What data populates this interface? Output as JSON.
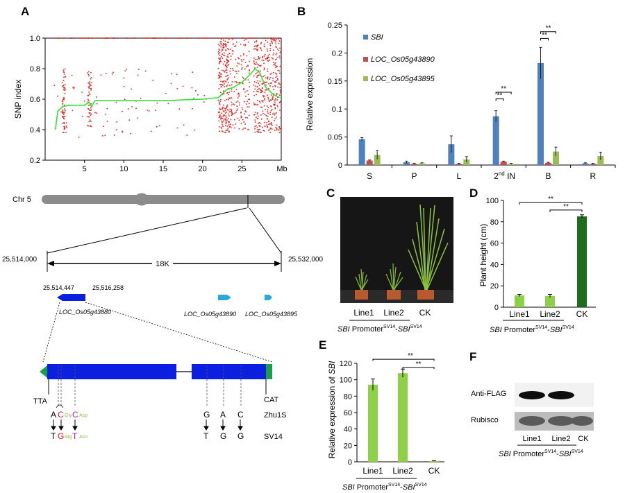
{
  "panels": {
    "A": "A",
    "B": "B",
    "C": "C",
    "D": "D",
    "E": "E",
    "F": "F"
  },
  "colors": {
    "snp_points": "#e8201c",
    "snp_line": "#33e333",
    "sbi_bar": "#4f81bd",
    "loc890_bar": "#c0504d",
    "loc895_bar": "#9bbb59",
    "gene_blue": "#0a1fe0",
    "arrow_cyan": "#28a8e0",
    "end_green": "#179f45",
    "height_green": "#8ed048",
    "ck_dark_green": "#1e6d1e"
  },
  "panel_a": {
    "ylabel": "SNP index",
    "y_ticks": [
      "0.2",
      "0.4",
      "0.6",
      "0.8",
      "1.0"
    ],
    "x_ticks": [
      "5",
      "10",
      "15",
      "20",
      "25"
    ],
    "x_unit": "Mb",
    "chromosome": "Chr 5",
    "region_left": "25,514,000",
    "region_right": "25,532,000",
    "region_size": "18K",
    "gene_start": "25,514,447",
    "gene_end": "25,516,258",
    "gene_main": "LOC_Os05g43880",
    "gene_2": "LOC_Os05g43890",
    "gene_3": "LOC_Os05g43895",
    "left_codon": "TTA",
    "right_codon": "CAT",
    "ref_name": "Zhu1S",
    "mut_name": "SV14",
    "ref_bases_1": [
      "A",
      "C",
      "C"
    ],
    "aa_ref_1": "Gly",
    "aa_ref_2": "Asp",
    "mut_bases_1": [
      "T",
      "G",
      "T"
    ],
    "aa_mut_1": "Arg",
    "aa_mut_2": "Asn",
    "ref_bases_2": [
      "G",
      "A",
      "C"
    ],
    "mut_bases_2": [
      "T",
      "G",
      "G"
    ]
  },
  "chart_data": [
    {
      "panel": "A",
      "type": "scatter",
      "ylabel": "SNP index",
      "xlabel": "Mb",
      "xlim": [
        0,
        30
      ],
      "ylim": [
        0.2,
        1.0
      ],
      "smoothed_line": {
        "x": [
          1.3,
          1.6,
          2.2,
          3.0,
          5.0,
          5.6,
          5.9,
          6.3,
          10.0,
          15.0,
          20.0,
          22.0,
          23.0,
          24.0,
          25.0,
          26.0,
          26.7,
          27.3,
          28.0,
          29.0,
          29.8
        ],
        "y": [
          0.4,
          0.52,
          0.55,
          0.56,
          0.56,
          0.58,
          0.55,
          0.59,
          0.59,
          0.59,
          0.6,
          0.61,
          0.66,
          0.68,
          0.71,
          0.76,
          0.8,
          0.77,
          0.68,
          0.63,
          0.61
        ]
      }
    },
    {
      "panel": "B",
      "type": "bar",
      "ylabel": "Relative  expression",
      "ylim": [
        0,
        0.25
      ],
      "y_ticks": [
        "0",
        "0.05",
        "0.1",
        "0.15",
        "0.2",
        "0.25"
      ],
      "categories": [
        "S",
        "P",
        "L",
        "2nd IN",
        "B",
        "R"
      ],
      "series": [
        {
          "name": "SBI",
          "values": [
            0.046,
            0.005,
            0.037,
            0.087,
            0.182,
            0.003
          ],
          "errors": [
            0.003,
            0.002,
            0.015,
            0.01,
            0.028,
            0.001
          ]
        },
        {
          "name": "LOC_Os05g43890",
          "values": [
            0.008,
            0.002,
            0.002,
            0.006,
            0.004,
            0.002
          ],
          "errors": [
            0.001,
            0.001,
            0.001,
            0.001,
            0.001,
            0.001
          ]
        },
        {
          "name": "LOC_Os05g43895",
          "values": [
            0.018,
            0.003,
            0.01,
            0.002,
            0.024,
            0.016
          ],
          "errors": [
            0.008,
            0.001,
            0.005,
            0.001,
            0.008,
            0.007
          ]
        }
      ],
      "significance": [
        "**",
        "**",
        "**",
        "**"
      ]
    },
    {
      "panel": "D",
      "type": "bar",
      "ylabel": "Plant height (cm)",
      "ylim": [
        0,
        100
      ],
      "y_ticks": [
        "0",
        "20",
        "40",
        "60",
        "80",
        "100"
      ],
      "categories": [
        "Line1",
        "Line2",
        "CK"
      ],
      "values": [
        11,
        10.5,
        85
      ],
      "errors": [
        1,
        1.5,
        1.5
      ],
      "significance": [
        "**",
        "**"
      ]
    },
    {
      "panel": "E",
      "type": "bar",
      "ylabel": "Relative expression of SBI",
      "ylim": [
        0,
        120
      ],
      "y_ticks": [
        "0",
        "20",
        "40",
        "60",
        "80",
        "100",
        "120"
      ],
      "categories": [
        "Line1",
        "Line2",
        "CK"
      ],
      "values": [
        94,
        108,
        1
      ],
      "errors": [
        7,
        5,
        0.3
      ],
      "significance": [
        "**",
        "**"
      ]
    }
  ],
  "panel_c": {
    "labels": [
      "Line1",
      "Line2",
      "CK"
    ],
    "construct_gene": "SBI",
    "construct_text": "Promoter",
    "construct_sup": "SV14",
    "construct_dash": "-",
    "construct_gene2": "SBI",
    "construct_sup2": "SV14"
  },
  "panel_f": {
    "row1": "Anti-FLAG",
    "row2": "Rubisco",
    "labels": [
      "Line1",
      "Line2",
      "CK"
    ]
  }
}
